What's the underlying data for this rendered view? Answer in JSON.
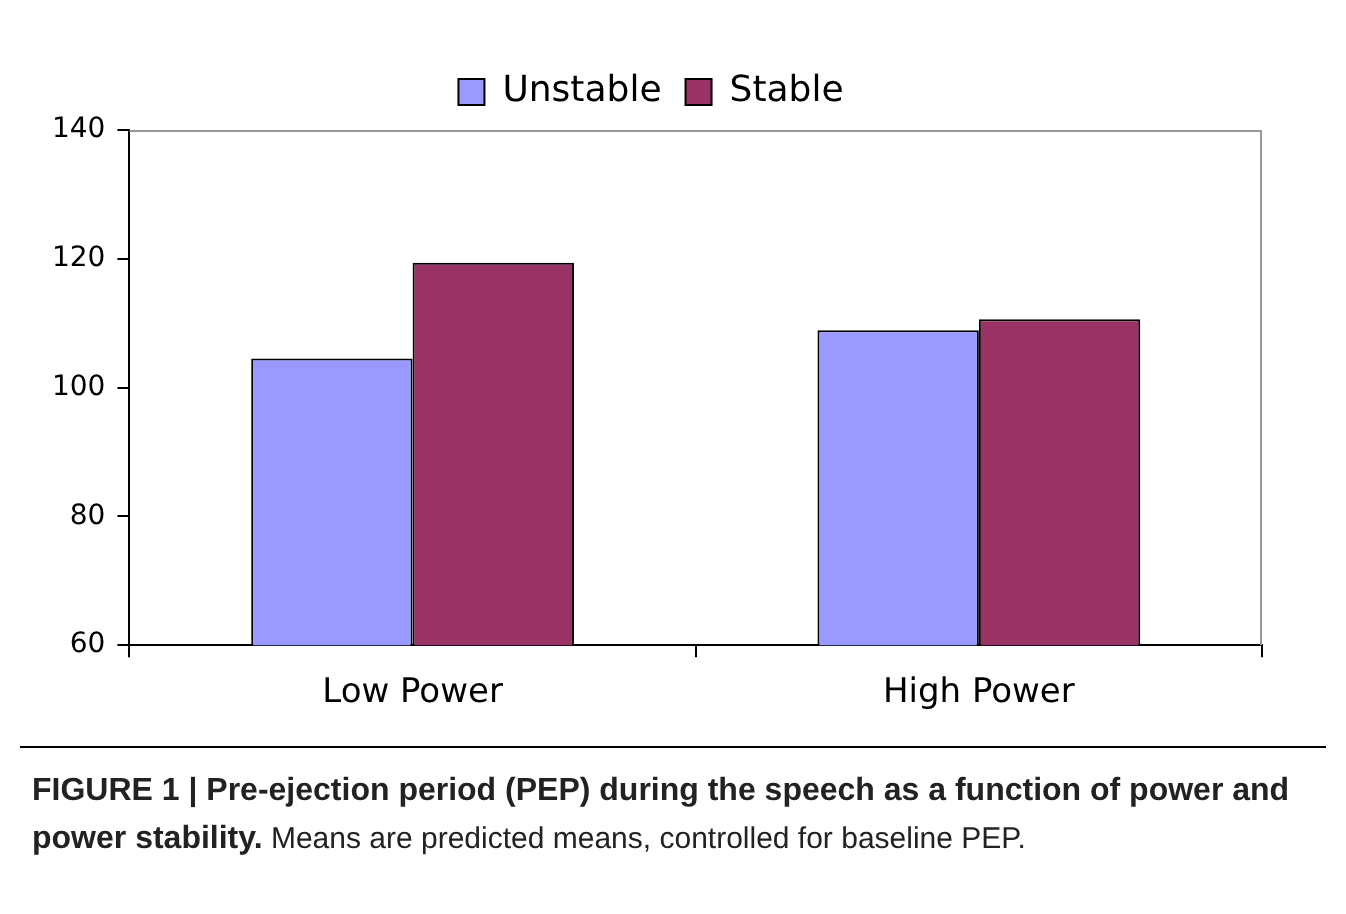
{
  "chart_data": {
    "type": "bar",
    "title": "FIGURE 1 | Pre-ejection period (PEP) during the speech as a function of power and power stability.",
    "annotations": [
      "Means are predicted means, controlled for baseline PEP."
    ],
    "categories": [
      "Low Power",
      "High Power"
    ],
    "series": [
      {
        "name": "Unstable",
        "color": "#9999ff",
        "values": [
          104.5,
          108.9
        ]
      },
      {
        "name": "Stable",
        "color": "#993366",
        "values": [
          119.4,
          110.6
        ]
      }
    ],
    "ylim": [
      60,
      140
    ],
    "yticks": [
      60,
      80,
      100,
      120,
      140
    ],
    "grid": false,
    "legend": "top"
  }
}
